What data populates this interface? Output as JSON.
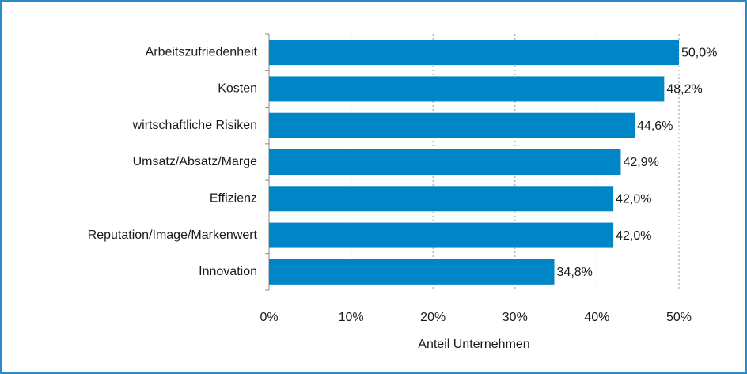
{
  "chart_data": {
    "type": "bar",
    "orientation": "horizontal",
    "x_label": "Anteil Unternehmen",
    "categories": [
      "Arbeitszufriedenheit",
      "Kosten",
      "wirtschaftliche Risiken",
      "Umsatz/Absatz/Marge",
      "Effizienz",
      "Reputation/Image/Markenwert",
      "Innovation"
    ],
    "values": [
      50.0,
      48.2,
      44.6,
      42.9,
      42.0,
      42.0,
      34.8
    ],
    "value_labels": [
      "50,0%",
      "48,2%",
      "44,6%",
      "42,9%",
      "42,0%",
      "42,0%",
      "34,8%"
    ],
    "color": "#0085c7",
    "xlim": [
      0,
      50
    ],
    "xticks": [
      {
        "value": 0,
        "label": "0%"
      },
      {
        "value": 10,
        "label": "10%"
      },
      {
        "value": 20,
        "label": "20%"
      },
      {
        "value": 30,
        "label": "30%"
      },
      {
        "value": 40,
        "label": "40%"
      },
      {
        "value": 50,
        "label": "50%"
      }
    ],
    "grid": true
  }
}
